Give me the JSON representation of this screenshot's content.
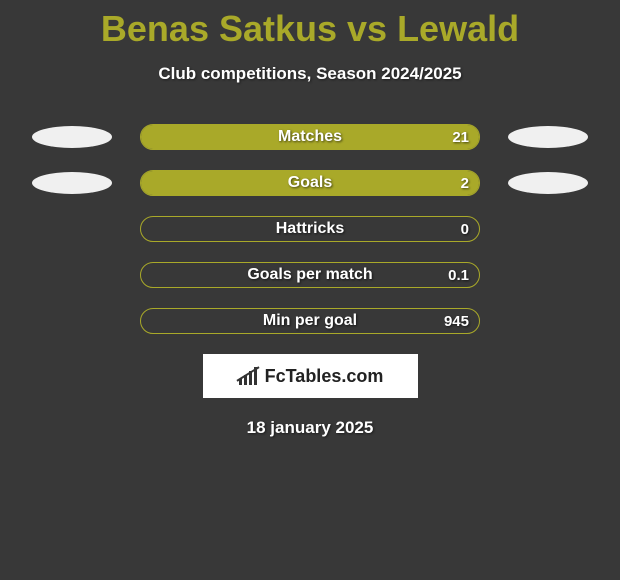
{
  "title": "Benas Satkus vs Lewald",
  "subtitle": "Club competitions, Season 2024/2025",
  "colors": {
    "accent": "#a9a929",
    "background": "#383838",
    "text": "#ffffff",
    "ellipse": "#f0f0f0"
  },
  "rows": [
    {
      "label": "Matches",
      "value": "21",
      "fill_pct": 100,
      "left_ellipse": true,
      "right_ellipse": true
    },
    {
      "label": "Goals",
      "value": "2",
      "fill_pct": 100,
      "left_ellipse": true,
      "right_ellipse": true
    },
    {
      "label": "Hattricks",
      "value": "0",
      "fill_pct": 0,
      "left_ellipse": false,
      "right_ellipse": false
    },
    {
      "label": "Goals per match",
      "value": "0.1",
      "fill_pct": 0,
      "left_ellipse": false,
      "right_ellipse": false
    },
    {
      "label": "Min per goal",
      "value": "945",
      "fill_pct": 0,
      "left_ellipse": false,
      "right_ellipse": false
    }
  ],
  "logo_text": "FcTables.com",
  "date": "18 january 2025"
}
